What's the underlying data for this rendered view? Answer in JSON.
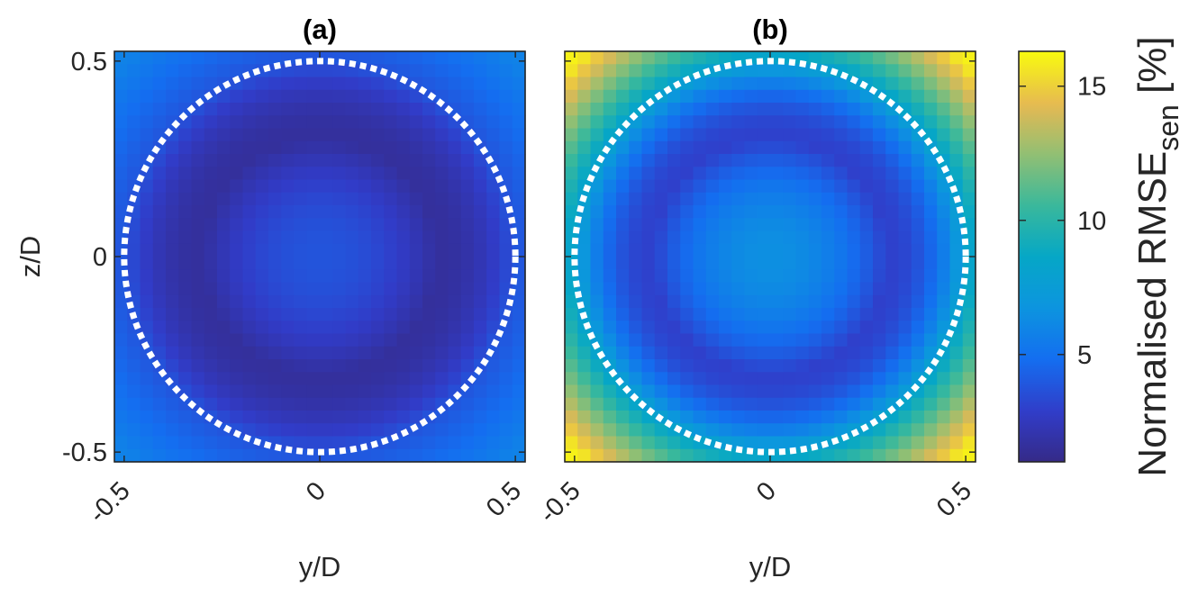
{
  "chart_data": [
    {
      "type": "heatmap",
      "title": "(a)",
      "xlabel": "y/D",
      "ylabel": "z/D",
      "xlim": [
        -0.525,
        0.525
      ],
      "ylim": [
        -0.525,
        0.525
      ],
      "x_ticks": [
        -0.5,
        0,
        0.5
      ],
      "x_tick_labels": [
        "-0.5",
        "0",
        "0.5"
      ],
      "y_ticks": [
        -0.5,
        0,
        0.5
      ],
      "y_tick_labels": [
        "-0.5",
        "0",
        "0.5"
      ],
      "grid_size": [
        32,
        32
      ],
      "value_model": {
        "description": "Normalised RMSE_sen field: dark ring of minimum error near r/D=0.3, lighter in centre and corners",
        "centre_value": 3.8,
        "ring_radius": 0.3,
        "ring_min_value": 1.6,
        "outer_value_at_circle": 3.8,
        "corner_value": 5.8
      },
      "annotations": [
        {
          "type": "dotted-circle",
          "centre": [
            0,
            0
          ],
          "radius": 0.5,
          "color": "#ffffff"
        }
      ]
    },
    {
      "type": "heatmap",
      "title": "(b)",
      "xlabel": "y/D",
      "ylabel": "",
      "xlim": [
        -0.525,
        0.525
      ],
      "ylim": [
        -0.525,
        0.525
      ],
      "x_ticks": [
        -0.5,
        0,
        0.5
      ],
      "x_tick_labels": [
        "-0.5",
        "0",
        "0.5"
      ],
      "grid_size": [
        32,
        32
      ],
      "value_model": {
        "description": "Normalised RMSE_sen field: low ring near r/D=0.3, moderate centre, high values in the corners",
        "centre_value": 6.5,
        "ring_radius": 0.3,
        "ring_min_value": 3.0,
        "outer_value_at_circle": 8.0,
        "corner_value": 16.0
      },
      "annotations": [
        {
          "type": "dotted-circle",
          "centre": [
            0,
            0
          ],
          "radius": 0.5,
          "color": "#ffffff"
        }
      ]
    }
  ],
  "colorbar": {
    "colormap": "parula",
    "range": [
      1.0,
      16.3
    ],
    "ticks": [
      5,
      10,
      15
    ],
    "tick_labels": [
      "5",
      "10",
      "15"
    ],
    "label_main": "Normalised RMSE",
    "label_sub": "sen",
    "label_unit": " [%]"
  }
}
